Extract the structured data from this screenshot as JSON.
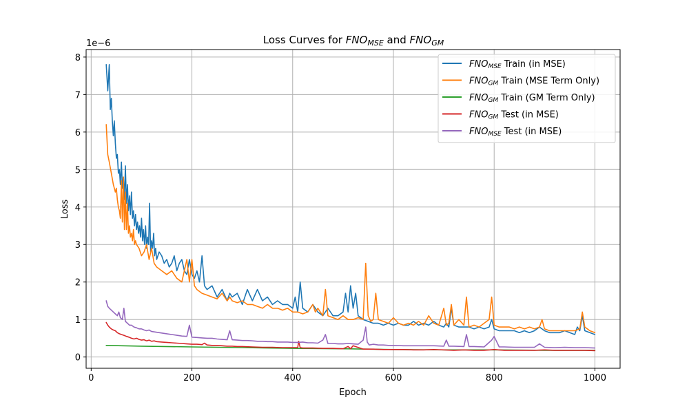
{
  "chart_data": {
    "type": "line",
    "title_parts": [
      {
        "text": "Loss Curves for ",
        "italic": false,
        "sub": false
      },
      {
        "text": "FNO",
        "italic": true,
        "sub": false
      },
      {
        "text": "MSE",
        "italic": true,
        "sub": true
      },
      {
        "text": " and ",
        "italic": false,
        "sub": false
      },
      {
        "text": "FNO",
        "italic": true,
        "sub": false
      },
      {
        "text": "GM",
        "italic": true,
        "sub": true
      }
    ],
    "xlabel": "Epoch",
    "ylabel": "Loss",
    "y_offset_label": "1e−6",
    "xlim": [
      -10,
      1050
    ],
    "ylim": [
      -0.3,
      8.2
    ],
    "xticks": [
      0,
      200,
      400,
      600,
      800,
      1000
    ],
    "yticks": [
      0,
      1,
      2,
      3,
      4,
      5,
      6,
      7,
      8
    ],
    "grid": true,
    "legend_position": "top-right",
    "series": [
      {
        "name": "Train (in MSE)",
        "model": "FNO",
        "subscript": "MSE",
        "color": "#1f77b4",
        "x": [
          30,
          33,
          36,
          38,
          40,
          42,
          44,
          46,
          48,
          50,
          52,
          54,
          56,
          58,
          60,
          62,
          64,
          66,
          68,
          70,
          72,
          74,
          76,
          78,
          80,
          82,
          84,
          86,
          88,
          90,
          92,
          94,
          96,
          98,
          100,
          102,
          104,
          106,
          108,
          110,
          112,
          114,
          116,
          118,
          120,
          122,
          124,
          126,
          128,
          130,
          135,
          140,
          145,
          150,
          155,
          160,
          165,
          170,
          175,
          180,
          185,
          190,
          195,
          200,
          205,
          210,
          215,
          220,
          225,
          230,
          240,
          250,
          260,
          270,
          275,
          280,
          290,
          300,
          310,
          320,
          330,
          340,
          350,
          360,
          370,
          380,
          390,
          400,
          405,
          410,
          415,
          420,
          430,
          440,
          450,
          460,
          470,
          480,
          490,
          500,
          505,
          510,
          515,
          520,
          525,
          530,
          540,
          550,
          560,
          570,
          580,
          590,
          600,
          610,
          620,
          630,
          640,
          650,
          660,
          670,
          680,
          690,
          700,
          705,
          710,
          715,
          720,
          730,
          740,
          750,
          760,
          770,
          780,
          790,
          795,
          800,
          810,
          820,
          830,
          840,
          850,
          860,
          870,
          880,
          890,
          900,
          910,
          920,
          930,
          940,
          950,
          960,
          965,
          970,
          975,
          980,
          990,
          1000
        ],
        "y": [
          7.8,
          7.1,
          7.8,
          6.6,
          6.9,
          6.3,
          5.9,
          6.3,
          5.7,
          5.3,
          5.4,
          4.9,
          5.0,
          4.6,
          5.2,
          4.5,
          4.8,
          4.2,
          5.1,
          4.1,
          4.6,
          3.9,
          4.3,
          3.8,
          4.4,
          3.7,
          3.9,
          3.5,
          3.8,
          3.4,
          3.6,
          3.3,
          3.5,
          3.2,
          3.7,
          3.1,
          3.4,
          3.0,
          3.5,
          2.9,
          3.2,
          3.0,
          4.1,
          2.8,
          3.1,
          2.9,
          3.3,
          2.7,
          2.9,
          2.6,
          2.8,
          2.7,
          2.5,
          2.6,
          2.4,
          2.5,
          2.7,
          2.3,
          2.5,
          2.6,
          2.3,
          2.2,
          2.6,
          2.2,
          2.1,
          2.3,
          2.0,
          2.7,
          1.9,
          1.8,
          1.9,
          1.6,
          1.8,
          1.5,
          1.7,
          1.6,
          1.7,
          1.4,
          1.8,
          1.5,
          1.8,
          1.5,
          1.6,
          1.4,
          1.5,
          1.4,
          1.4,
          1.3,
          1.6,
          1.2,
          2.0,
          1.3,
          1.2,
          1.4,
          1.2,
          1.1,
          1.3,
          1.1,
          1.1,
          1.2,
          1.7,
          1.2,
          1.9,
          1.3,
          1.7,
          1.1,
          1.0,
          0.95,
          0.9,
          0.9,
          0.85,
          0.9,
          0.85,
          0.9,
          0.85,
          0.85,
          0.95,
          0.85,
          0.9,
          0.85,
          0.95,
          0.85,
          0.8,
          0.9,
          0.8,
          1.3,
          0.85,
          0.8,
          0.8,
          0.8,
          0.75,
          0.8,
          0.75,
          0.8,
          1.0,
          0.75,
          0.7,
          0.7,
          0.7,
          0.7,
          0.65,
          0.7,
          0.65,
          0.7,
          0.8,
          0.7,
          0.65,
          0.65,
          0.65,
          0.7,
          0.65,
          0.6,
          0.8,
          0.7,
          1.1,
          0.7,
          0.65,
          0.6
        ]
      },
      {
        "name": "Train (MSE Term Only)",
        "model": "FNO",
        "subscript": "GM",
        "color": "#ff7f0e",
        "x": [
          30,
          33,
          36,
          40,
          44,
          48,
          50,
          52,
          54,
          56,
          58,
          60,
          62,
          64,
          66,
          68,
          70,
          72,
          74,
          76,
          78,
          80,
          82,
          84,
          86,
          88,
          90,
          95,
          100,
          105,
          110,
          115,
          120,
          125,
          130,
          140,
          150,
          160,
          170,
          180,
          190,
          195,
          200,
          205,
          210,
          220,
          230,
          240,
          250,
          260,
          270,
          275,
          280,
          290,
          300,
          310,
          320,
          330,
          340,
          350,
          360,
          370,
          380,
          390,
          400,
          410,
          420,
          430,
          440,
          445,
          450,
          460,
          465,
          470,
          480,
          490,
          500,
          510,
          520,
          530,
          540,
          545,
          550,
          555,
          560,
          565,
          570,
          580,
          590,
          600,
          610,
          620,
          630,
          640,
          650,
          660,
          670,
          680,
          690,
          700,
          705,
          710,
          715,
          720,
          730,
          740,
          745,
          750,
          760,
          770,
          780,
          790,
          795,
          800,
          810,
          820,
          830,
          840,
          850,
          860,
          870,
          880,
          890,
          895,
          900,
          910,
          920,
          930,
          940,
          950,
          960,
          970,
          975,
          980,
          985,
          990,
          1000
        ],
        "y": [
          6.2,
          5.4,
          5.2,
          4.9,
          4.6,
          4.4,
          4.5,
          4.2,
          4.0,
          3.9,
          3.7,
          4.7,
          3.6,
          4.8,
          3.4,
          4.4,
          3.4,
          4.1,
          3.3,
          3.5,
          3.2,
          3.3,
          3.1,
          3.4,
          3.0,
          3.1,
          3.0,
          2.9,
          2.7,
          2.8,
          3.0,
          2.6,
          2.9,
          2.5,
          2.4,
          2.3,
          2.2,
          2.3,
          2.1,
          2.0,
          2.6,
          2.0,
          2.6,
          1.9,
          1.8,
          1.7,
          1.65,
          1.6,
          1.55,
          1.7,
          1.5,
          1.6,
          1.5,
          1.45,
          1.5,
          1.4,
          1.4,
          1.35,
          1.3,
          1.4,
          1.3,
          1.3,
          1.25,
          1.3,
          1.2,
          1.2,
          1.15,
          1.2,
          1.4,
          1.2,
          1.3,
          1.1,
          1.8,
          1.1,
          1.05,
          1.0,
          1.1,
          1.0,
          1.0,
          1.05,
          1.0,
          2.5,
          1.1,
          0.95,
          1.0,
          1.7,
          1.0,
          0.95,
          0.9,
          1.05,
          0.9,
          0.85,
          0.9,
          0.85,
          0.95,
          0.85,
          1.1,
          0.9,
          0.85,
          1.3,
          0.85,
          0.9,
          1.4,
          0.85,
          1.0,
          0.85,
          1.6,
          0.8,
          0.85,
          0.8,
          0.9,
          1.0,
          1.6,
          0.85,
          0.8,
          0.8,
          0.8,
          0.75,
          0.8,
          0.75,
          0.8,
          0.75,
          0.8,
          1.0,
          0.75,
          0.7,
          0.7,
          0.7,
          0.7,
          0.7,
          0.7,
          0.75,
          1.2,
          0.8,
          0.75,
          0.7,
          0.65
        ]
      },
      {
        "name": "Train (GM Term Only)",
        "model": "FNO",
        "subscript": "GM",
        "color": "#2ca02c",
        "x": [
          30,
          100,
          200,
          300,
          400,
          500,
          600,
          700,
          800,
          900,
          1000
        ],
        "y": [
          0.31,
          0.29,
          0.27,
          0.25,
          0.23,
          0.22,
          0.2,
          0.19,
          0.19,
          0.18,
          0.18
        ]
      },
      {
        "name": "Test (in MSE)",
        "model": "FNO",
        "subscript": "GM",
        "color": "#d62728",
        "x": [
          30,
          33,
          36,
          40,
          44,
          48,
          52,
          56,
          60,
          65,
          70,
          75,
          80,
          85,
          90,
          95,
          100,
          105,
          110,
          115,
          120,
          125,
          130,
          140,
          150,
          160,
          170,
          180,
          190,
          200,
          210,
          220,
          225,
          230,
          240,
          250,
          260,
          270,
          280,
          290,
          300,
          320,
          340,
          360,
          380,
          400,
          410,
          412,
          415,
          420,
          440,
          460,
          480,
          500,
          510,
          515,
          520,
          540,
          560,
          580,
          600,
          620,
          640,
          660,
          680,
          700,
          720,
          740,
          760,
          780,
          800,
          820,
          840,
          860,
          880,
          900,
          920,
          940,
          960,
          980,
          1000
        ],
        "y": [
          0.92,
          0.85,
          0.8,
          0.75,
          0.72,
          0.7,
          0.65,
          0.62,
          0.6,
          0.58,
          0.55,
          0.53,
          0.5,
          0.48,
          0.5,
          0.47,
          0.45,
          0.46,
          0.43,
          0.45,
          0.42,
          0.43,
          0.41,
          0.4,
          0.39,
          0.38,
          0.37,
          0.36,
          0.35,
          0.34,
          0.34,
          0.33,
          0.37,
          0.32,
          0.31,
          0.31,
          0.3,
          0.29,
          0.29,
          0.28,
          0.28,
          0.27,
          0.26,
          0.26,
          0.25,
          0.25,
          0.25,
          0.42,
          0.25,
          0.24,
          0.24,
          0.23,
          0.23,
          0.22,
          0.28,
          0.22,
          0.3,
          0.21,
          0.21,
          0.2,
          0.2,
          0.2,
          0.19,
          0.19,
          0.2,
          0.19,
          0.18,
          0.19,
          0.18,
          0.18,
          0.2,
          0.18,
          0.18,
          0.18,
          0.18,
          0.19,
          0.18,
          0.18,
          0.18,
          0.18,
          0.17
        ]
      },
      {
        "name": "Test (in MSE)",
        "model": "FNO",
        "subscript": "MSE",
        "color": "#9467bd",
        "x": [
          30,
          33,
          36,
          40,
          44,
          48,
          52,
          55,
          58,
          62,
          65,
          68,
          72,
          76,
          80,
          85,
          90,
          95,
          100,
          105,
          110,
          115,
          120,
          130,
          140,
          150,
          160,
          170,
          180,
          190,
          195,
          200,
          210,
          220,
          230,
          240,
          250,
          260,
          270,
          275,
          280,
          290,
          300,
          310,
          320,
          330,
          340,
          350,
          360,
          370,
          380,
          390,
          400,
          410,
          420,
          430,
          440,
          450,
          460,
          465,
          470,
          480,
          490,
          500,
          510,
          520,
          530,
          540,
          545,
          548,
          552,
          560,
          570,
          580,
          590,
          600,
          620,
          640,
          660,
          680,
          700,
          705,
          710,
          720,
          740,
          745,
          750,
          760,
          780,
          795,
          800,
          810,
          820,
          840,
          860,
          880,
          890,
          900,
          920,
          940,
          960,
          980,
          1000
        ],
        "y": [
          1.5,
          1.35,
          1.3,
          1.25,
          1.2,
          1.15,
          1.1,
          1.2,
          1.05,
          1.0,
          1.3,
          0.95,
          0.9,
          0.85,
          0.85,
          0.8,
          0.78,
          0.75,
          0.75,
          0.72,
          0.7,
          0.72,
          0.68,
          0.66,
          0.64,
          0.62,
          0.6,
          0.58,
          0.56,
          0.55,
          0.85,
          0.53,
          0.52,
          0.51,
          0.5,
          0.5,
          0.48,
          0.47,
          0.46,
          0.7,
          0.46,
          0.45,
          0.44,
          0.44,
          0.43,
          0.42,
          0.42,
          0.41,
          0.41,
          0.4,
          0.4,
          0.4,
          0.39,
          0.39,
          0.4,
          0.38,
          0.38,
          0.37,
          0.45,
          0.6,
          0.36,
          0.36,
          0.35,
          0.35,
          0.36,
          0.35,
          0.34,
          0.45,
          0.8,
          0.4,
          0.32,
          0.34,
          0.32,
          0.32,
          0.31,
          0.31,
          0.3,
          0.3,
          0.3,
          0.3,
          0.29,
          0.45,
          0.29,
          0.29,
          0.28,
          0.6,
          0.28,
          0.28,
          0.27,
          0.45,
          0.55,
          0.27,
          0.27,
          0.26,
          0.26,
          0.26,
          0.35,
          0.26,
          0.25,
          0.26,
          0.25,
          0.25,
          0.24
        ]
      }
    ]
  }
}
